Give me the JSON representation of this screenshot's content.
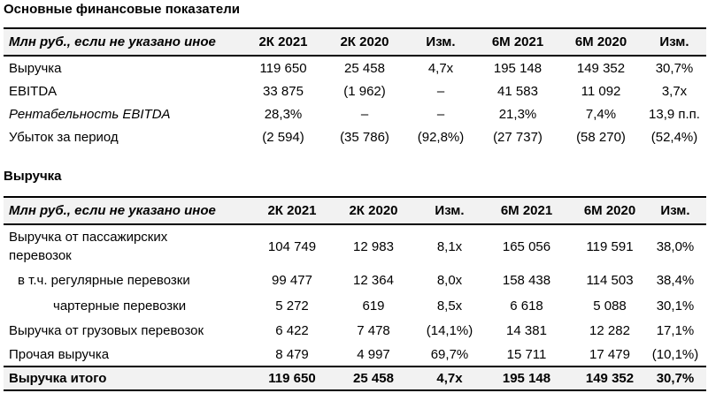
{
  "table1": {
    "title": "Основные финансовые показатели",
    "headers": [
      "Млн руб., если не указано иное",
      "2К 2021",
      "2К 2020",
      "Изм.",
      "6М 2021",
      "6М 2020",
      "Изм."
    ],
    "rows": [
      {
        "label": "Выручка",
        "values": [
          "119 650",
          "25 458",
          "4,7x",
          "195 148",
          "149 352",
          "30,7%"
        ]
      },
      {
        "label": "EBITDA",
        "values": [
          "33 875",
          "(1 962)",
          "–",
          "41 583",
          "11 092",
          "3,7x"
        ]
      },
      {
        "label": "Рентабельность EBITDA",
        "values": [
          "28,3%",
          "–",
          "–",
          "21,3%",
          "7,4%",
          "13,9 п.п."
        ]
      },
      {
        "label": "Убыток за период",
        "values": [
          "(2 594)",
          "(35 786)",
          "(92,8%)",
          "(27 737)",
          "(58 270)",
          "(52,4%)"
        ]
      }
    ]
  },
  "table2": {
    "title": "Выручка",
    "headers": [
      "Млн руб., если не указано иное",
      "2К 2021",
      "2К 2020",
      "Изм.",
      "6М 2021",
      "6М 2020",
      "Изм."
    ],
    "rows": [
      {
        "label": "Выручка от пассажирских перевозок",
        "values": [
          "104 749",
          "12 983",
          "8,1x",
          "165 056",
          "119 591",
          "38,0%"
        ]
      },
      {
        "label": "в т.ч. регулярные перевозки",
        "values": [
          "99 477",
          "12 364",
          "8,0x",
          "158 438",
          "114 503",
          "38,4%"
        ]
      },
      {
        "label": "чартерные перевозки",
        "values": [
          "5 272",
          "619",
          "8,5x",
          "6 618",
          "5 088",
          "30,1%"
        ]
      },
      {
        "label": "Выручка от грузовых перевозок",
        "values": [
          "6 422",
          "7 478",
          "(14,1%)",
          "14 381",
          "12 282",
          "17,1%"
        ]
      },
      {
        "label": "Прочая выручка",
        "values": [
          "8 479",
          "4 997",
          "69,7%",
          "15 711",
          "17 479",
          "(10,1%)"
        ]
      },
      {
        "label": "Выручка итого",
        "values": [
          "119 650",
          "25 458",
          "4,7x",
          "195 148",
          "149 352",
          "30,7%"
        ]
      }
    ]
  }
}
